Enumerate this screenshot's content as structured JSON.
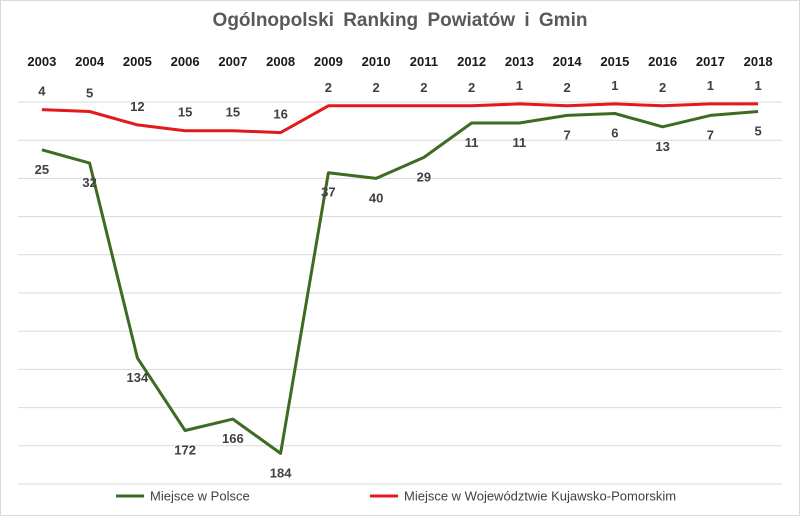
{
  "chart_data": {
    "type": "line",
    "title": "Ogólnopolski  Ranking Powiatów i Gmin",
    "xlabel": "",
    "ylabel": "",
    "x": [
      "2003",
      "2004",
      "2005",
      "2006",
      "2007",
      "2008",
      "2009",
      "2010",
      "2011",
      "2012",
      "2013",
      "2014",
      "2015",
      "2016",
      "2017",
      "2018"
    ],
    "y_reversed": true,
    "ylim": [
      0,
      200
    ],
    "x_axis_position": "top",
    "y_tick_labels_shown": false,
    "grid": "horizontal",
    "legend_position": "bottom",
    "series": [
      {
        "name": "Miejsce w Polsce",
        "color": "#3d6b21",
        "values": [
          25,
          32,
          134,
          172,
          166,
          184,
          37,
          40,
          29,
          11,
          11,
          7,
          6,
          13,
          7,
          5
        ]
      },
      {
        "name": "Miejsce w Województwie Kujawsko-Pomorskim",
        "color": "#e31a1c",
        "values": [
          4,
          5,
          12,
          15,
          15,
          16,
          2,
          2,
          2,
          2,
          1,
          2,
          1,
          2,
          1,
          1
        ]
      }
    ]
  }
}
